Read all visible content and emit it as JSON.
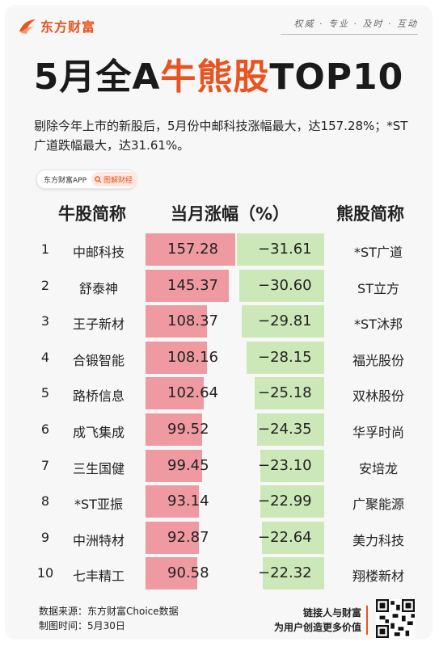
{
  "brand": {
    "name": "东方财富",
    "slogan": "权威 · 专业 · 及时 · 互动"
  },
  "title": {
    "part1": "5月全A",
    "highlight": "牛熊股",
    "part2": "TOP10"
  },
  "summary": "剔除今年上市的新股后，5月份中邮科技涨幅最大，达157.28%；*ST广道跌幅最大，达31.61%。",
  "pill": {
    "left": "东方财富APP",
    "right": "图解财经"
  },
  "headers": {
    "bull": "牛股简称",
    "change": "当月涨幅（%）",
    "bear": "熊股简称"
  },
  "colors": {
    "brand": "#e8531f",
    "bull_bar": "#ef9aa1",
    "bear_bar": "#cde8b8"
  },
  "chart_data": {
    "type": "bar",
    "categories": [
      "1",
      "2",
      "3",
      "4",
      "5",
      "6",
      "7",
      "8",
      "9",
      "10"
    ],
    "bull_names": [
      "中邮科技",
      "舒泰神",
      "王子新材",
      "合锻智能",
      "路桥信息",
      "成飞集成",
      "三生国健",
      "*ST亚振",
      "中洲特材",
      "七丰精工"
    ],
    "bear_names": [
      "*ST广道",
      "ST立方",
      "*ST沐邦",
      "福光股份",
      "双林股份",
      "华孚时尚",
      "安培龙",
      "广聚能源",
      "美力科技",
      "翔楼新材"
    ],
    "series": [
      {
        "values": [
          157.28,
          145.37,
          108.37,
          108.16,
          102.64,
          99.52,
          99.45,
          93.14,
          92.87,
          90.58
        ]
      },
      {
        "values": [
          -31.61,
          -30.6,
          -29.81,
          -28.15,
          -25.18,
          -24.35,
          -23.1,
          -22.99,
          -22.64,
          -22.32
        ]
      }
    ],
    "value_labels_bull": [
      "157.28",
      "145.37",
      "108.37",
      "108.16",
      "102.64",
      "99.52",
      "99.45",
      "93.14",
      "92.87",
      "90.58"
    ],
    "value_labels_bear": [
      "−31.61",
      "−30.60",
      "−29.81",
      "−28.15",
      "−25.18",
      "−24.35",
      "−23.10",
      "−22.99",
      "−22.64",
      "−22.32"
    ]
  },
  "footer": {
    "source": "数据来源：东方财富Choice数据",
    "date": "制图时间：5月30日",
    "tagline1": "链接人与财富",
    "tagline2": "为用户创造更多价值"
  }
}
